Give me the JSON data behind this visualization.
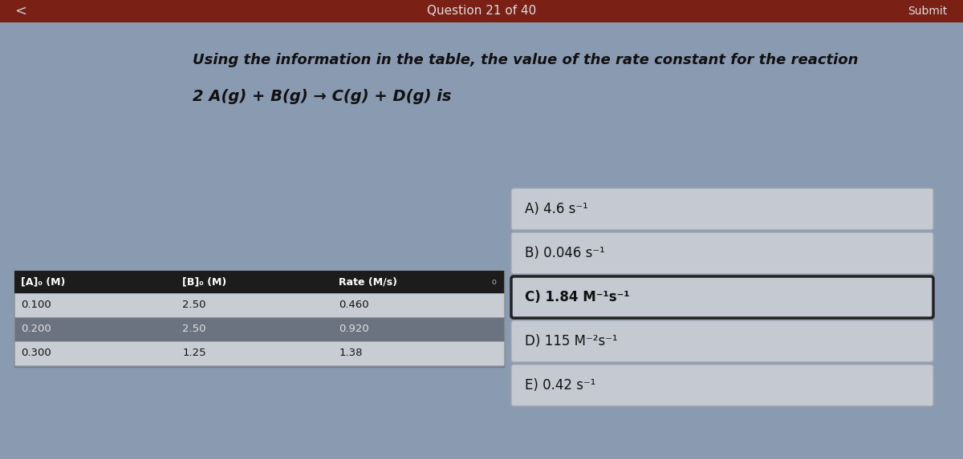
{
  "bg_color": "#8a9ab0",
  "header_bar_color": "#7a2015",
  "content_bg": "#8a9ab0",
  "header_text": "Question 21 of 40",
  "submit_text": "Submit",
  "nav_left": "<",
  "question_text": "Using the information in the table, the value of the rate constant for the reaction",
  "equation_text": "2 A(g) + B(g) → C(g) + D(g) is",
  "table_headers": [
    "[A]₀ (M)",
    "[B]₀ (M)",
    "Rate (M/s)"
  ],
  "table_rows": [
    [
      "0.100",
      "2.50",
      "0.460"
    ],
    [
      "0.200",
      "2.50",
      "0.920"
    ],
    [
      "0.300",
      "1.25",
      "1.38"
    ]
  ],
  "table_header_bg": "#1c1c1c",
  "table_header_fg": "#ffffff",
  "table_row0_bg": "#c8cdd4",
  "table_row1_bg": "#6b7280",
  "table_row2_bg": "#c8cdd4",
  "table_row0_fg": "#111111",
  "table_row1_fg": "#e0e0e0",
  "table_row2_fg": "#111111",
  "choice_labels": [
    "A) 4.6 s⁻¹",
    "B) 0.046 s⁻¹",
    "C) 1.84 M⁻¹s⁻¹",
    "D) 115 M⁻²s⁻¹",
    "E) 0.42 s⁻¹"
  ],
  "choice_selected": [
    false,
    false,
    true,
    false,
    false
  ],
  "choice_box_bg": "#c5cad2",
  "choice_box_selected_bg": "#c5cad2",
  "choice_border_color": "#a0a8b4",
  "choice_selected_border": "#222222",
  "choice_text_color": "#111111"
}
